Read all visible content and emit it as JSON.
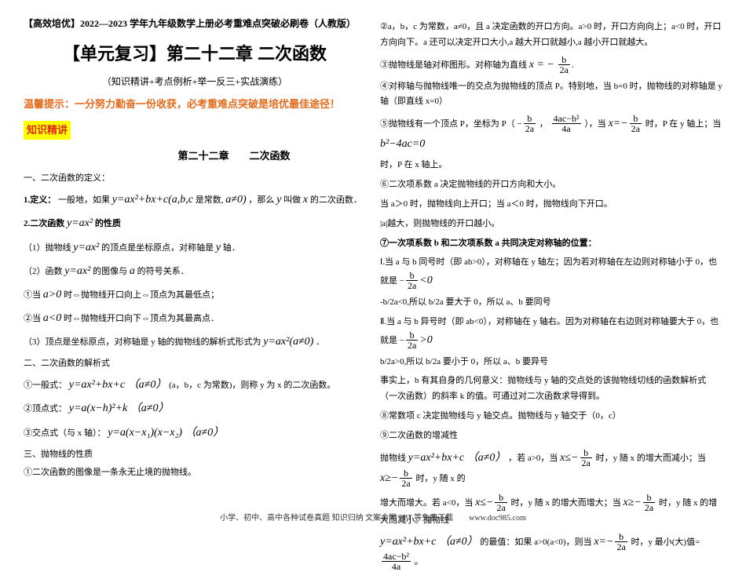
{
  "left": {
    "header": "【高效培优】2022—2023 学年九年级数学上册必考重难点突破必刷卷（人教版）",
    "title": "【单元复习】第二十二章 二次函数",
    "subtitle": "（知识精讲+考点例析+举一反三+实战演练）",
    "tip": "温馨提示：一分努力勤奋一份收获，必考重难点突破是培优最佳途径！",
    "tag": "知识精讲",
    "chapter": "第二十二章　　二次函数",
    "sec1_title": "一、二次函数的定义：",
    "sec1_def_label": "1.定义：",
    "sec1_def_a": "一般地，如果",
    "sec1_def_b": "y=ax²+bx+c(a,b,c",
    "sec1_def_c": "是常数,",
    "sec1_def_d": "a≠0)",
    "sec1_def_e": "，那么",
    "sec1_def_f": "y",
    "sec1_def_g": "叫做",
    "sec1_def_h": "x",
    "sec1_def_i": "的二次函数．",
    "sec1_2_label": "2.二次函数",
    "sec1_2_math": "y=ax²",
    "sec1_2_tail": "的性质",
    "sec1_2_1_a": "（1）抛物线",
    "sec1_2_1_b": "y=ax²",
    "sec1_2_1_c": "的顶点是坐标原点，对称轴是",
    "sec1_2_1_d": "y",
    "sec1_2_1_e": "轴．",
    "sec1_2_2_a": "（2）函数",
    "sec1_2_2_b": "y=ax²",
    "sec1_2_2_c": "的图像与",
    "sec1_2_2_d": "a",
    "sec1_2_2_e": "的符号关系．",
    "sec1_2_2_i_a": "①当",
    "sec1_2_2_i_b": "a>0",
    "sec1_2_2_i_c": "时⇔抛物线开口向上⇔顶点为其最低点；",
    "sec1_2_2_ii_a": "②当",
    "sec1_2_2_ii_b": "a<0",
    "sec1_2_2_ii_c": "时⇔抛物线开口向下⇔顶点为其最高点．",
    "sec1_2_3": "（3）顶点是坐标原点，对称轴是 y 轴的抛物线的解析式形式为",
    "sec1_2_3_m": "y=ax²(a≠0)",
    "sec1_2_3_tail": "．",
    "sec2_title": "二、二次函数的解析式",
    "sec2_1_a": "①一般式：",
    "sec2_1_b": "y=ax²+bx+c （a≠0）",
    "sec2_1_c": "(a，b，c 为常数)，则称 y 为 x 的二次函数。",
    "sec2_2_a": "②顶点式：",
    "sec2_2_b": "y=a(x−h)²+k （a≠0）",
    "sec2_3_a": "③交点式（与 x 轴）：",
    "sec2_3_b": "y=a(x−x₁)(x−x₂) （a≠0）",
    "sec3_title": "三、抛物线的性质",
    "sec3_1": "①二次函数的图像是一条永无止境的抛物线。"
  },
  "right": {
    "r1": "②a，b，c 为常数，a≠0，且 a 决定函数的开口方向。a>0 时，开口方向向上；a<0 时，开口方向向下。a 还可以决定开口大小,a 越大开口就越小,a 越小开口就越大。",
    "r2_a": "③抛物线是轴对称图形。对称轴为直线",
    "r2_frac_num": "b",
    "r2_frac_den": "2a",
    "r3": "④对称轴与抛物线唯一的交点为抛物线的顶点 P。特别地，当 b=0 时，抛物线的对称轴是 y 轴（即直线 x=0）",
    "r4_a": "⑤抛物线有一个顶点 P，坐标为 P（",
    "r4_f1n": "b",
    "r4_f1d": "2a",
    "r4_mid": "，",
    "r4_f2n": "4ac−b²",
    "r4_f2d": "4a",
    "r4_close": "），当",
    "r4_xEq_n": "b",
    "r4_xEq_d": "2a",
    "r4_b": "时，P 在 y 轴上；当",
    "r4_disc": "b²−4ac=0",
    "r5": "时，P 在 x 轴上。",
    "r6": "⑥二次项系数 a 决定抛物线的开口方向和大小。",
    "r7": "当 a＞0 时，抛物线向上开口；当 a＜0 时，抛物线向下开口。",
    "r8": "|a|越大，则抛物线的开口越小。",
    "r9": "⑦一次项系数 b 和二次项系数 a 共同决定对称轴的位置：",
    "r10_a": "Ⅰ.当 a 与 b 同号时（即 ab>0），对称轴在 y 轴左；因为若对称轴在左边则对称轴小于 0，也就是",
    "r10_frac_n": "b",
    "r10_frac_d": "2a",
    "r10_sign": "<0",
    "r11": "-b/2a<0,所以 b/2a 要大于 0，所以 a、b 要同号",
    "r12_a": "Ⅱ.当 a 与 b 异号时（即 ab<0），对称轴在 y 轴右。因为对称轴在右边则对称轴要大于 0，也就是",
    "r12_sign": ">0",
    "r13": "b/2a>0,所以 b/2a 要小于 0，所以 a、b 要异号",
    "r14": "事实上，b 有其自身的几何意义：抛物线与 y 轴的交点处的该抛物线切线的函数解析式（一次函数）的斜率 k 的值。可通过对二次函数求导得到。",
    "r15": "⑧常数项 c 决定抛物线与 y 轴交点。抛物线与 y 轴交于（0，c）",
    "r16": "⑨二次函数的增减性",
    "r17_a": "抛物线",
    "r17_b": "y=ax²+bx+c （a≠0）",
    "r17_c": "，若 a>0，当",
    "r17_d": "时，y 随 x 的增大而减小；当",
    "r17_e": "时，y 随 x 的",
    "r18_a": "增大而增大。若 a<0，当",
    "r18_b": "时，y 随 x 的增大而增大；当",
    "r18_c": "时，y 随 x 的增大而减小。抛物线",
    "r19_a": "y=ax²+bx+c （a≠0）",
    "r19_b": "的最值：如果 a>0(a<0)，则当",
    "r19_c": "时，y 最小(大)值=",
    "r19_fracN": "4ac−b²",
    "r19_fracD": "4a",
    "r19_tail": "。"
  },
  "footer": "小学、初中、高中各种试卷真题 知识归纳 文案合同 PPT 等免费下载　　www.doc985.com",
  "style": {
    "highlight_bg": "#ffff00",
    "highlight_fg": "#e1291c",
    "tip_color": "#e36b1b"
  }
}
